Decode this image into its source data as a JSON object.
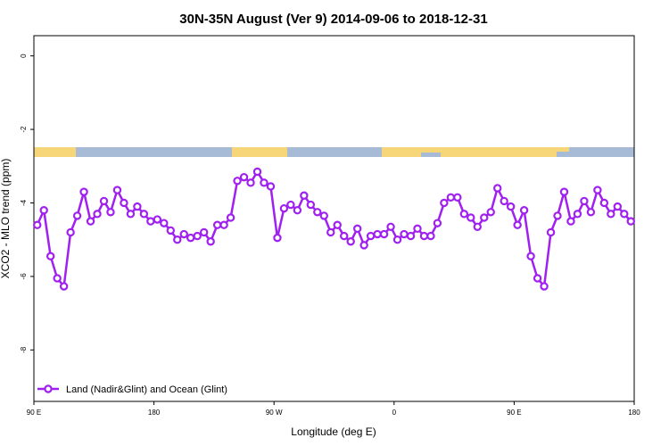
{
  "chart_data": {
    "type": "line",
    "title": "30N-35N August (Ver 9)   2014-09-06 to 2018-12-31",
    "x_label": "Longitude (deg E)",
    "y_label": "XCO2 - MLO trend (ppm)",
    "xlim": [
      90,
      540
    ],
    "ylim": [
      -9.4,
      0.55
    ],
    "xticks": [
      {
        "value": 90,
        "label": "90 E"
      },
      180,
      {
        "value": 270,
        "label": "90 W"
      },
      {
        "value": 360,
        "label": "0"
      },
      {
        "value": 450,
        "label": "90 E"
      },
      {
        "value": 540,
        "label": "180"
      }
    ],
    "yticks": [
      0,
      -2,
      -4,
      -6,
      -8
    ],
    "legend": "bottom-left",
    "series": [
      {
        "name": "Land (Nadir&Glint) and Ocean (Glint)",
        "color": "#a020f0",
        "x": [
          92.5,
          97.5,
          102.5,
          107.5,
          112.5,
          117.5,
          122.5,
          127.5,
          132.5,
          137.5,
          142.5,
          147.5,
          152.5,
          157.5,
          162.5,
          167.5,
          172.5,
          177.5,
          182.5,
          187.5,
          192.5,
          197.5,
          202.5,
          207.5,
          212.5,
          217.5,
          222.5,
          227.5,
          232.5,
          237.5,
          242.5,
          247.5,
          252.5,
          257.5,
          262.5,
          267.5,
          272.5,
          277.5,
          282.5,
          287.5,
          292.5,
          297.5,
          302.5,
          307.5,
          312.5,
          317.5,
          322.5,
          327.5,
          332.5,
          337.5,
          342.5,
          347.5,
          352.5,
          357.5,
          362.5,
          367.5,
          372.5,
          377.5,
          382.5,
          387.5,
          392.5,
          397.5,
          402.5,
          407.5,
          412.5,
          417.5,
          422.5,
          427.5,
          432.5,
          437.5,
          442.5,
          447.5,
          452.5,
          457.5,
          462.5,
          467.5,
          472.5,
          477.5,
          482.5,
          487.5,
          492.5,
          497.5,
          502.5,
          507.5,
          512.5,
          517.5,
          522.5,
          527.5,
          532.5,
          537.5
        ],
        "values": [
          -4.6,
          -4.2,
          -5.45,
          -6.05,
          -6.27,
          -4.8,
          -4.35,
          -3.7,
          -4.5,
          -4.3,
          -3.95,
          -4.25,
          -3.65,
          -4.0,
          -4.3,
          -4.1,
          -4.3,
          -4.5,
          -4.45,
          -4.55,
          -4.75,
          -5.0,
          -4.85,
          -4.95,
          -4.9,
          -4.8,
          -5.05,
          -4.6,
          -4.6,
          -4.4,
          -3.4,
          -3.3,
          -3.45,
          -3.15,
          -3.45,
          -3.55,
          -4.95,
          -4.15,
          -4.05,
          -4.2,
          -3.8,
          -4.05,
          -4.25,
          -4.35,
          -4.8,
          -4.6,
          -4.9,
          -5.05,
          -4.7,
          -5.15,
          -4.9,
          -4.85,
          -4.85,
          -4.65,
          -5.0,
          -4.85,
          -4.9,
          -4.7,
          -4.9,
          -4.9,
          -4.55,
          -4.0,
          -3.85,
          -3.85,
          -4.3,
          -4.4,
          -4.65,
          -4.4,
          -4.25,
          -3.6,
          -3.95,
          -4.1,
          -4.6,
          -4.2,
          -5.45,
          -6.05,
          -6.27,
          -4.8,
          -4.35,
          -3.7,
          -4.5,
          -4.3,
          -3.95,
          -4.25,
          -3.65,
          -4.0,
          -4.3,
          -4.1,
          -4.3,
          -4.5
        ]
      }
    ]
  }
}
